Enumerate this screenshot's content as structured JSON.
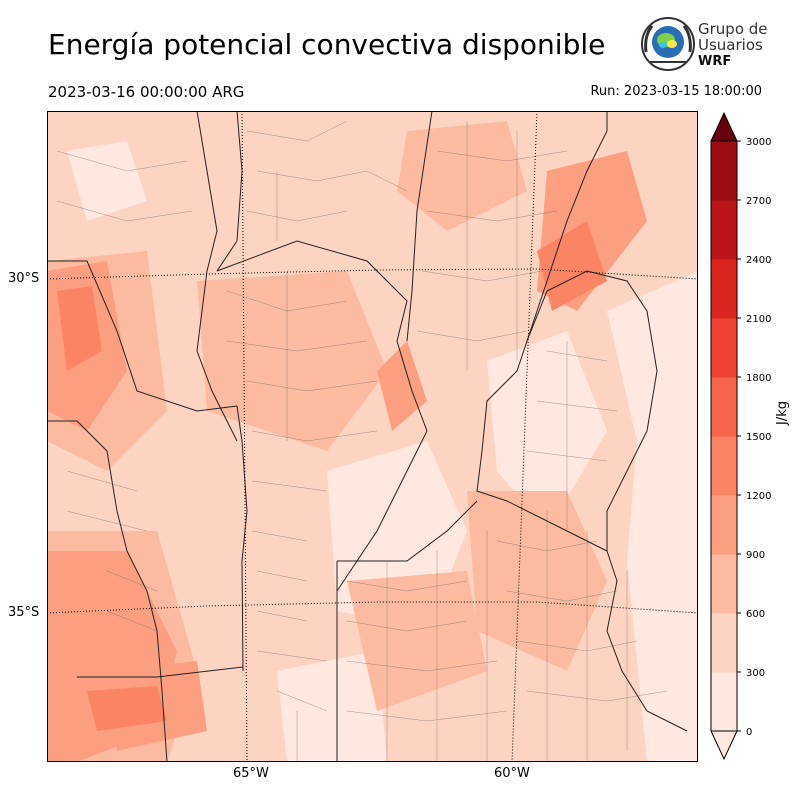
{
  "header": {
    "title": "Energía potencial convectiva disponible",
    "valid_time": "2023-03-16 00:00:00 ARG",
    "run_time": "Run: 2023-03-15 18:00:00"
  },
  "logo": {
    "line1": "Grupo de",
    "line2": "Usuarios",
    "line3": "WRF"
  },
  "map": {
    "lat_labels": [
      "30°S",
      "35°S"
    ],
    "lon_labels": [
      "65°W",
      "60°W"
    ]
  },
  "colorbar": {
    "unit": "J/kg",
    "levels": [
      0,
      300,
      600,
      900,
      1200,
      1500,
      1800,
      2100,
      2400,
      2700,
      3000
    ],
    "tick_labels": [
      "0",
      "300",
      "600",
      "900",
      "1200",
      "1500",
      "1800",
      "2100",
      "2400",
      "2700",
      "3000"
    ],
    "colors": [
      "#fee8df",
      "#fdd4c2",
      "#fcbba1",
      "#fc9f80",
      "#fb8464",
      "#f6654a",
      "#ee4232",
      "#d9251e",
      "#bb151a",
      "#9b0c13",
      "#67000d"
    ]
  }
}
